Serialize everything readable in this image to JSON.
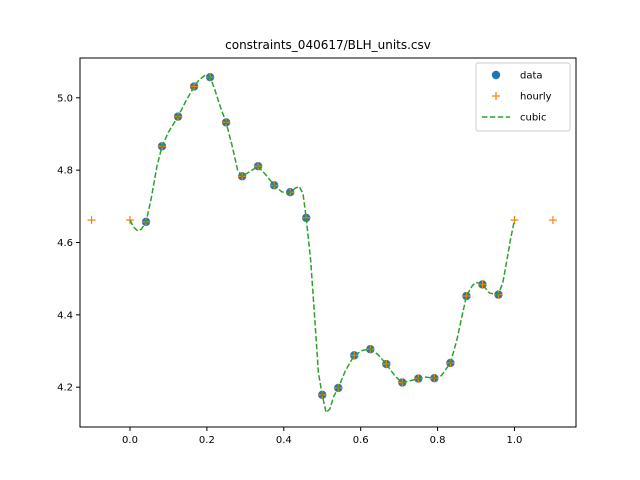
{
  "chart_data": {
    "type": "line",
    "title": "constraints_040617/BLH_units.csv",
    "xlabel": "",
    "ylabel": "",
    "xlim": [
      -0.13,
      1.16
    ],
    "ylim": [
      4.09,
      5.11
    ],
    "x_ticks": [
      0.0,
      0.2,
      0.4,
      0.6,
      0.8,
      1.0
    ],
    "x_tick_labels": [
      "0.0",
      "0.2",
      "0.4",
      "0.6",
      "0.8",
      "1.0"
    ],
    "y_ticks": [
      4.2,
      4.4,
      4.6,
      4.8,
      5.0
    ],
    "y_tick_labels": [
      "4.2",
      "4.4",
      "4.6",
      "4.8",
      "5.0"
    ],
    "grid": false,
    "legend_position": "top-right",
    "series": [
      {
        "name": "data",
        "style": "markers",
        "marker": "circle",
        "color": "#1f77b4",
        "x": [
          0.0417,
          0.0833,
          0.125,
          0.1667,
          0.2083,
          0.25,
          0.2917,
          0.3333,
          0.375,
          0.4167,
          0.4583,
          0.5,
          0.5417,
          0.5833,
          0.625,
          0.6667,
          0.7083,
          0.75,
          0.7917,
          0.8333,
          0.875,
          0.9167,
          0.9583
        ],
        "y": [
          4.657,
          4.866,
          4.948,
          5.031,
          5.057,
          4.932,
          4.783,
          4.811,
          4.758,
          4.739,
          4.668,
          4.179,
          4.198,
          4.288,
          4.305,
          4.264,
          4.213,
          4.224,
          4.225,
          4.267,
          4.452,
          4.484,
          4.456
        ]
      },
      {
        "name": "hourly",
        "style": "markers",
        "marker": "plus",
        "color": "#ff7f0e",
        "x": [
          -0.1,
          0.0,
          0.0417,
          0.0833,
          0.125,
          0.1667,
          0.2083,
          0.25,
          0.2917,
          0.3333,
          0.375,
          0.4167,
          0.4583,
          0.5,
          0.5417,
          0.5833,
          0.625,
          0.6667,
          0.7083,
          0.75,
          0.7917,
          0.8333,
          0.875,
          0.9167,
          0.9583,
          1.0,
          1.1
        ],
        "y": [
          4.662,
          4.662,
          4.657,
          4.866,
          4.948,
          5.031,
          5.057,
          4.932,
          4.783,
          4.811,
          4.758,
          4.739,
          4.668,
          4.179,
          4.198,
          4.288,
          4.305,
          4.264,
          4.213,
          4.224,
          4.225,
          4.267,
          4.452,
          4.484,
          4.456,
          4.662,
          4.662
        ]
      },
      {
        "name": "cubic",
        "style": "dashed-line",
        "color": "#2ca02c",
        "x": [
          0.0,
          0.01,
          0.02,
          0.03,
          0.0417,
          0.055,
          0.07,
          0.0833,
          0.1,
          0.125,
          0.145,
          0.1667,
          0.18,
          0.195,
          0.2083,
          0.22,
          0.235,
          0.25,
          0.265,
          0.28,
          0.2917,
          0.31,
          0.3333,
          0.355,
          0.375,
          0.395,
          0.4167,
          0.43,
          0.44,
          0.45,
          0.4583,
          0.47,
          0.48,
          0.49,
          0.5,
          0.51,
          0.52,
          0.53,
          0.5417,
          0.56,
          0.5833,
          0.605,
          0.625,
          0.645,
          0.6667,
          0.69,
          0.7083,
          0.73,
          0.75,
          0.77,
          0.7917,
          0.81,
          0.8333,
          0.85,
          0.875,
          0.89,
          0.9,
          0.9167,
          0.935,
          0.9583,
          0.97,
          0.98,
          0.99,
          1.0
        ],
        "y": [
          4.662,
          4.642,
          4.632,
          4.637,
          4.657,
          4.72,
          4.81,
          4.866,
          4.905,
          4.948,
          4.99,
          5.031,
          5.05,
          5.062,
          5.057,
          5.025,
          4.975,
          4.932,
          4.87,
          4.8,
          4.783,
          4.795,
          4.811,
          4.785,
          4.758,
          4.74,
          4.739,
          4.75,
          4.755,
          4.735,
          4.668,
          4.55,
          4.4,
          4.24,
          4.179,
          4.13,
          4.14,
          4.175,
          4.198,
          4.245,
          4.288,
          4.302,
          4.305,
          4.29,
          4.264,
          4.23,
          4.213,
          4.218,
          4.224,
          4.228,
          4.225,
          4.232,
          4.267,
          4.33,
          4.452,
          4.48,
          4.49,
          4.484,
          4.46,
          4.456,
          4.49,
          4.55,
          4.61,
          4.662
        ]
      }
    ]
  }
}
